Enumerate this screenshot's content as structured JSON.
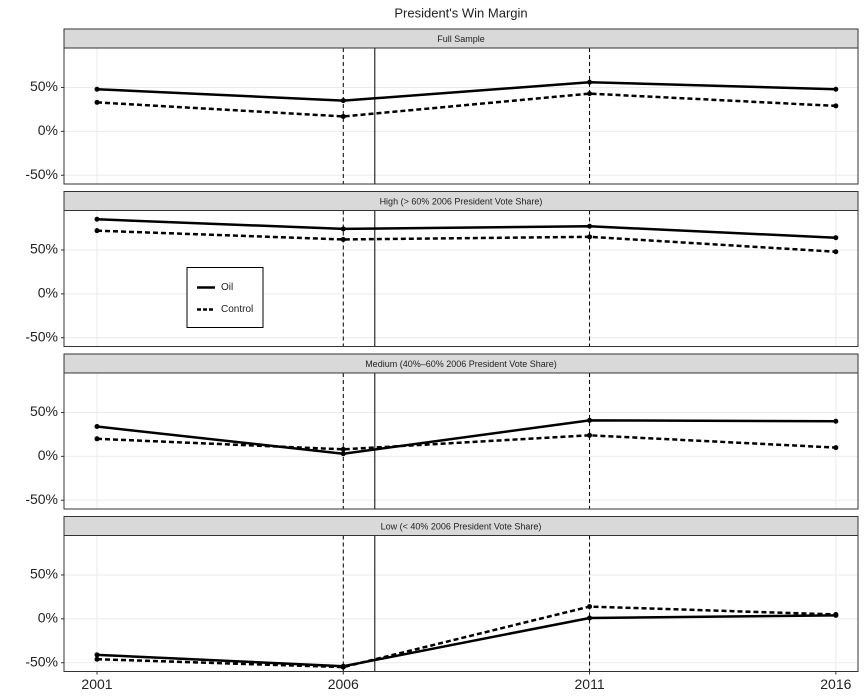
{
  "title": "President's Win Margin",
  "chart_data": [
    {
      "type": "line",
      "strip": "Full Sample",
      "x": [
        2001,
        2006,
        2011,
        2016
      ],
      "series": [
        {
          "name": "Oil",
          "color": "#000000",
          "dash": "solid",
          "values": [
            48,
            35,
            56,
            48
          ]
        },
        {
          "name": "Control",
          "color": "#000000",
          "dash": "dashed",
          "values": [
            33,
            17,
            43,
            29
          ]
        }
      ],
      "xlim": [
        2000.33,
        2016.45
      ],
      "xticks": [
        2001,
        2006,
        2011,
        2016
      ],
      "ylim": [
        -60,
        95
      ],
      "yticks": [
        {
          "value": -50,
          "label": "-50%"
        },
        {
          "value": 0,
          "label": "0%"
        },
        {
          "value": 50,
          "label": "50%"
        }
      ],
      "grid": true,
      "reference_lines": {
        "dashed": [
          2006,
          2011
        ],
        "solid": [
          2006.64
        ]
      }
    },
    {
      "type": "line",
      "strip": "High (> 60% 2006 President Vote Share)",
      "x": [
        2001,
        2006,
        2011,
        2016
      ],
      "series": [
        {
          "name": "Oil",
          "color": "#000000",
          "dash": "solid",
          "values": [
            85,
            74,
            77,
            64
          ]
        },
        {
          "name": "Control",
          "color": "#000000",
          "dash": "dashed",
          "values": [
            72,
            62,
            65,
            48
          ]
        }
      ],
      "xlim": [
        2000.33,
        2016.45
      ],
      "xticks": [
        2001,
        2006,
        2011,
        2016
      ],
      "ylim": [
        -60,
        95
      ],
      "yticks": [
        {
          "value": -50,
          "label": "-50%"
        },
        {
          "value": 0,
          "label": "0%"
        },
        {
          "value": 50,
          "label": "50%"
        }
      ],
      "grid": true,
      "reference_lines": {
        "dashed": [
          2006,
          2011
        ],
        "solid": [
          2006.64
        ]
      },
      "legend": "left"
    },
    {
      "type": "line",
      "strip": "Medium (40%–60% 2006 President Vote Share)",
      "x": [
        2001,
        2006,
        2011,
        2016
      ],
      "series": [
        {
          "name": "Oil",
          "color": "#000000",
          "dash": "solid",
          "values": [
            34,
            3,
            41,
            40
          ]
        },
        {
          "name": "Control",
          "color": "#000000",
          "dash": "dashed",
          "values": [
            20,
            8,
            24,
            10
          ]
        }
      ],
      "xlim": [
        2000.33,
        2016.45
      ],
      "xticks": [
        2001,
        2006,
        2011,
        2016
      ],
      "ylim": [
        -60,
        95
      ],
      "yticks": [
        {
          "value": -50,
          "label": "-50%"
        },
        {
          "value": 0,
          "label": "0%"
        },
        {
          "value": 50,
          "label": "50%"
        }
      ],
      "grid": true,
      "reference_lines": {
        "dashed": [
          2006,
          2011
        ],
        "solid": [
          2006.64
        ]
      }
    },
    {
      "type": "line",
      "strip": "Low (< 40% 2006 President Vote Share)",
      "x": [
        2001,
        2006,
        2011,
        2016
      ],
      "series": [
        {
          "name": "Oil",
          "color": "#000000",
          "dash": "solid",
          "values": [
            -41,
            -54,
            1,
            4
          ]
        },
        {
          "name": "Control",
          "color": "#000000",
          "dash": "dashed",
          "values": [
            -46,
            -55,
            14,
            5
          ]
        }
      ],
      "xlim": [
        2000.33,
        2016.45
      ],
      "xticks": [
        2001,
        2006,
        2011,
        2016
      ],
      "ylim": [
        -60,
        95
      ],
      "yticks": [
        {
          "value": -50,
          "label": "-50%"
        },
        {
          "value": 0,
          "label": "0%"
        },
        {
          "value": 50,
          "label": "50%"
        }
      ],
      "grid": true,
      "reference_lines": {
        "dashed": [
          2006,
          2011
        ],
        "solid": [
          2006.64
        ]
      },
      "show_x_labels": true
    }
  ]
}
